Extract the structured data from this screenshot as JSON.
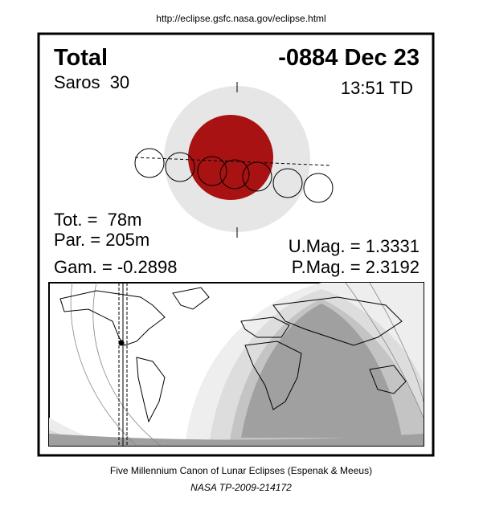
{
  "header": {
    "url": "http://eclipse.gsfc.nasa.gov/eclipse.html"
  },
  "eclipse": {
    "type": "Total",
    "date": "-0884 Dec 23",
    "saros": "Saros  30",
    "time": "13:51 TD",
    "total_duration": "Tot. =  78m",
    "partial_duration": "Par. = 205m",
    "gamma": "Gam. = -0.2898",
    "umbral_magnitude": "U.Mag. = 1.3331",
    "penumbral_magnitude": "P.Mag. = 2.3192"
  },
  "footer": {
    "title": "Five Millennium Canon of Lunar Eclipses (Espenak & Meeus)",
    "reference": "NASA TP-2009-214172"
  }
}
